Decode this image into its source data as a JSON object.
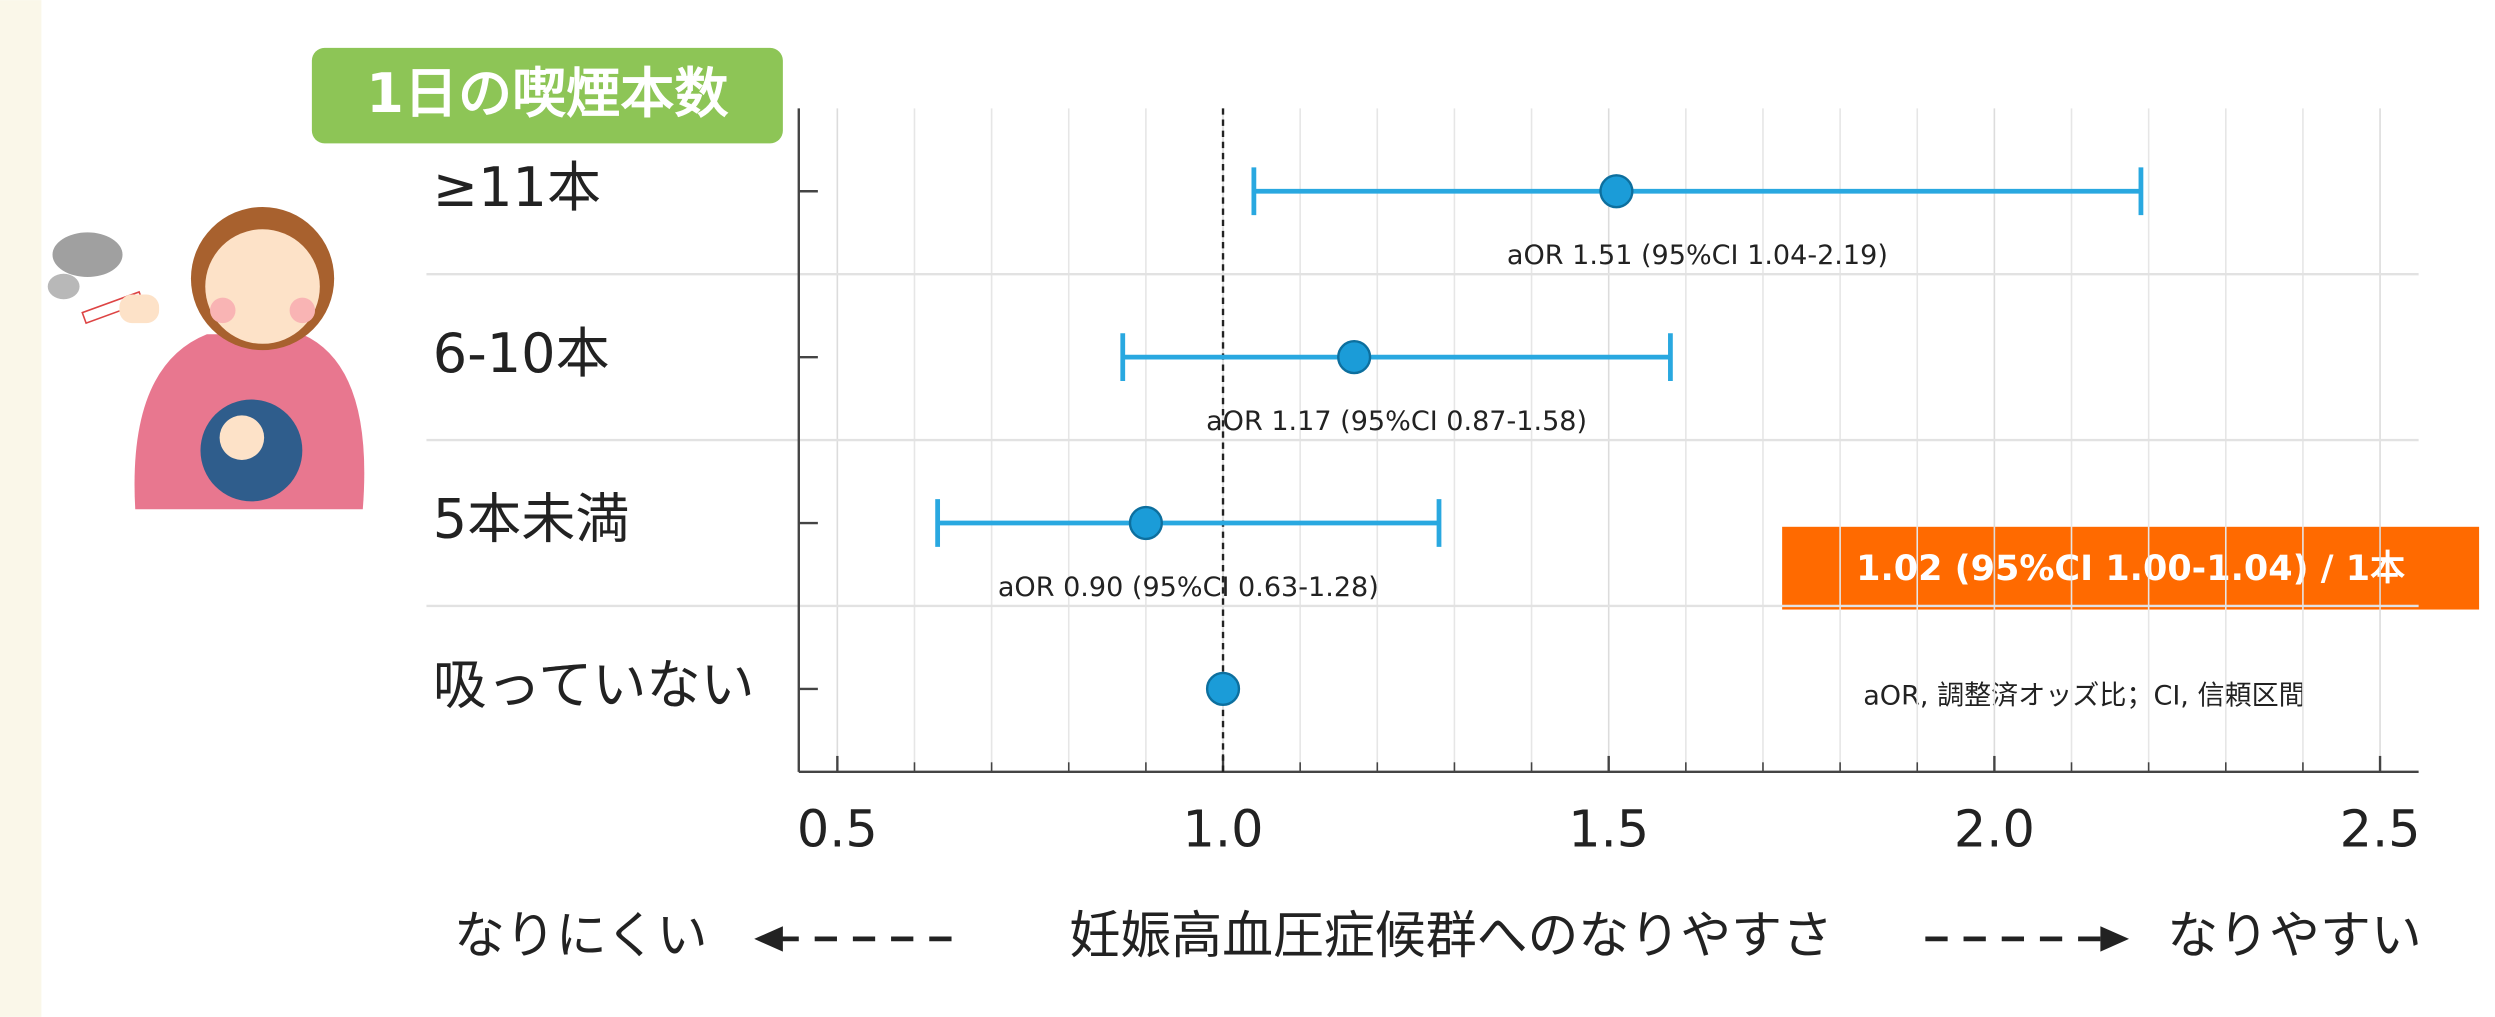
{
  "chart_data": {
    "type": "forest",
    "title": "1日の喫煙本数",
    "categories": [
      "≥11本",
      "6-10本",
      "5本未満",
      "吸っていない"
    ],
    "values": [
      1.51,
      1.17,
      0.9,
      1.0
    ],
    "ci_low": [
      1.04,
      0.87,
      0.63,
      null
    ],
    "ci_high": [
      2.19,
      1.58,
      1.28,
      null
    ],
    "value_labels": [
      "aOR 1.51 (95%CI 1.04-2.19)",
      "aOR 1.17 (95%CI 0.87-1.58)",
      "aOR 0.90 (95%CI 0.63-1.28)",
      null
    ],
    "color": "#29a8e0",
    "xlim": [
      0.45,
      2.55
    ],
    "xticks": [
      0.5,
      {
        "value": 1,
        "label": "1.0"
      },
      1.5,
      {
        "value": 2,
        "label": "2.0"
      },
      2.5
    ],
    "minor_xticks": [
      0.6,
      0.7,
      0.8,
      0.9,
      1.1,
      1.2,
      1.3,
      1.4,
      1.6,
      1.7,
      1.8,
      1.9,
      2.1,
      2.2,
      2.3,
      2.4
    ],
    "reference_line": 1,
    "grid": true,
    "highlight": "1.02 (95%CI 1.00-1.04) / 1本",
    "note": "aOR, 調整済オッズ比；CI, 信頼区間",
    "x_label": {
      "left": "なりにくい",
      "center": "妊娠高血圧症候群へのなりやすさ",
      "right": "なりやすい"
    }
  }
}
